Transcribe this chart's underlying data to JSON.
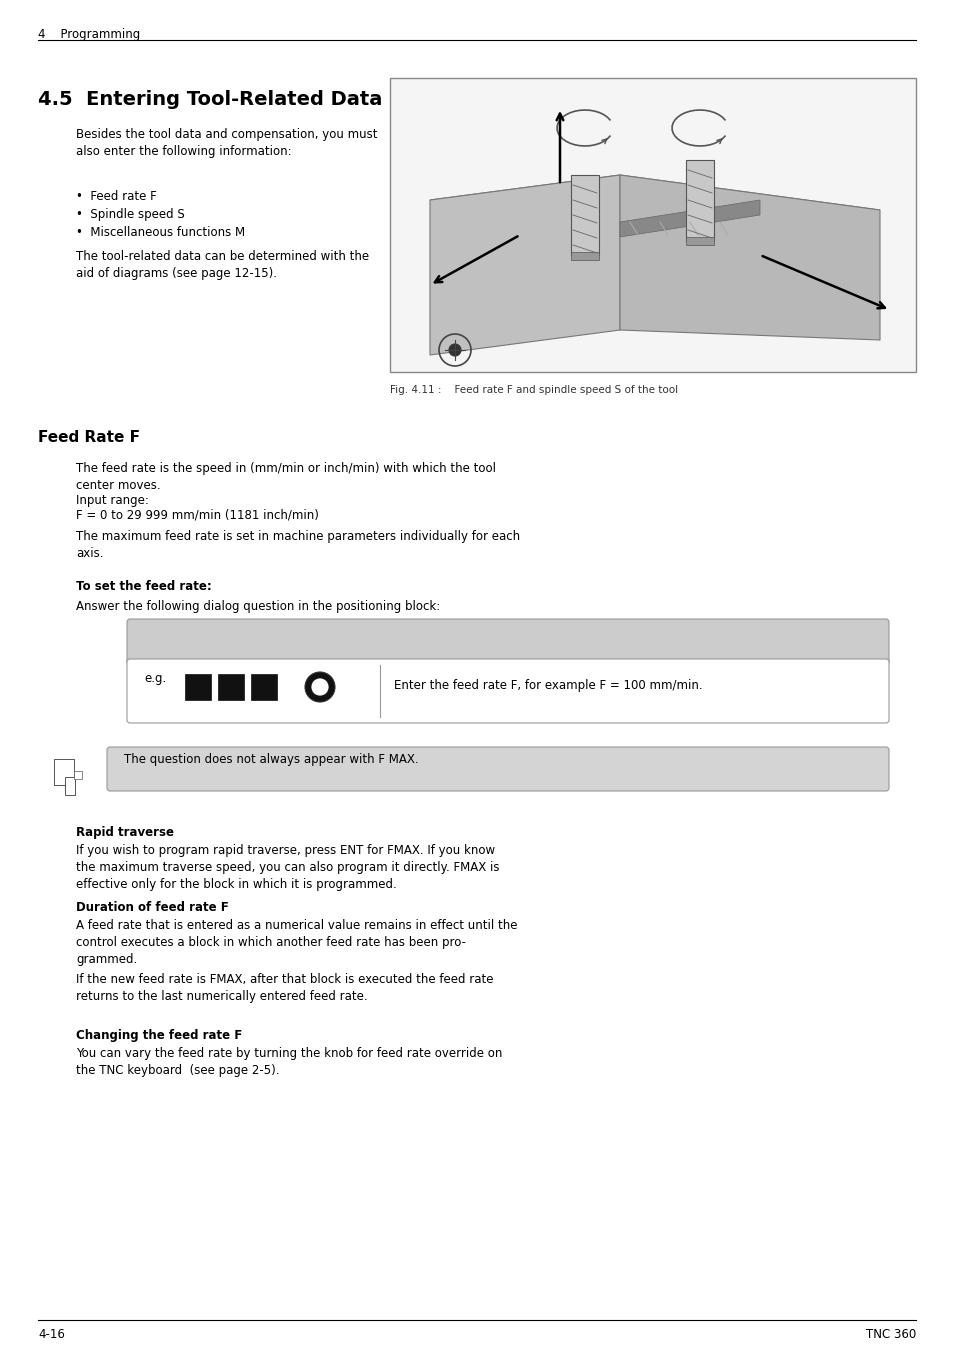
{
  "page_bg": "#ffffff",
  "header_text": "4    Programming",
  "section_title": "4.5  Entering Tool-Related Data",
  "body_text_intro": "Besides the tool data and compensation, you must\nalso enter the following information:",
  "bullet_items": [
    "Feed rate F",
    "Spindle speed S",
    "Miscellaneous functions M"
  ],
  "body_text_after_bullets": "The tool-related data can be determined with the\naid of diagrams (see page 12-15).",
  "fig_caption": "Fig. 4.11 :    Feed rate F and spindle speed S of the tool",
  "section2_title": "Feed Rate F",
  "feed_rate_para1": "The feed rate is the speed in (mm/min or inch/min) with which the tool\ncenter moves.",
  "feed_rate_input_label": "Input range:",
  "feed_rate_input_range": "F = 0 to 29 999 mm/min (1181 inch/min)",
  "feed_rate_para2": "The maximum feed rate is set in machine parameters individually for each\naxis.",
  "to_set_label": "To set the feed rate:",
  "dialog_text": "Answer the following dialog question in the positioning block:",
  "eg_label": "e.g.",
  "feed_rate_instruction": "Enter the feed rate F, for example F = 100 mm/min.",
  "note_text": "The question does not always appear with F MAX.",
  "rapid_title": "Rapid traverse",
  "rapid_para": "If you wish to program rapid traverse, press ENT for FMAX. If you know\nthe maximum traverse speed, you can also program it directly. FMAX is\neffective only for the block in which it is programmed.",
  "duration_title": "Duration of feed rate F",
  "duration_para1": "A feed rate that is entered as a numerical value remains in effect until the\ncontrol executes a block in which another feed rate has been pro-\ngrammed.",
  "duration_para2": "If the new feed rate is FMAX, after that block is executed the feed rate\nreturns to the last numerically entered feed rate.",
  "changing_title": "Changing the feed rate F",
  "changing_para": "You can vary the feed rate by turning the knob for feed rate override on\nthe TNC keyboard  (see page 2-5).",
  "footer_left": "4-16",
  "footer_right": "TNC 360",
  "gray_bg": "#cccccc",
  "note_bg": "#d4d4d4",
  "box_border": "#999999"
}
